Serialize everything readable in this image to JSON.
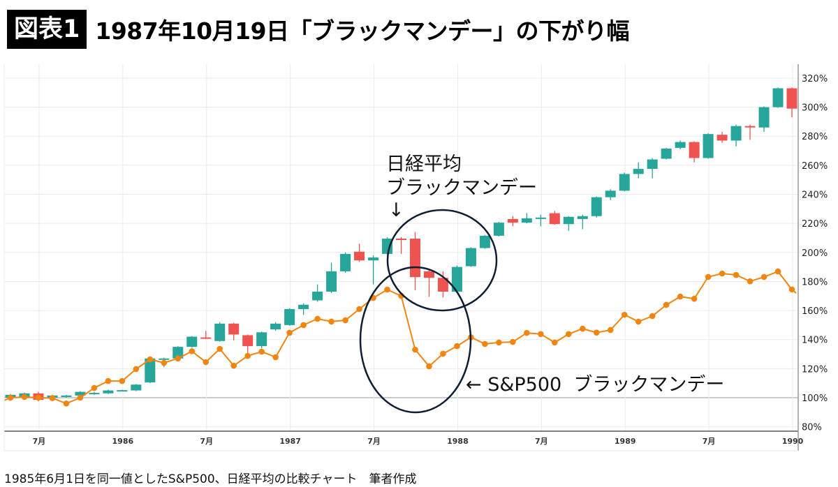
{
  "title": {
    "badge": "図表1",
    "text": "1987年10月19日「ブラックマンデー」の下がり幅"
  },
  "caption": "1985年6月1日を同一値としたS&P500、日経平均の比較チャート　筆者作成",
  "annotations": {
    "nikkei_line1": "日経平均",
    "nikkei_line2": "ブラックマンデー",
    "nikkei_arrow": "↓",
    "sp500": "← S&P500  ブラックマンデー"
  },
  "colors": {
    "up": "#26a69a",
    "down": "#ef5350",
    "sp500": "#f0850f",
    "ellipse": "#0f1e33",
    "grid": "#e6ecf0"
  },
  "chart_data": {
    "type": "candlestick+line",
    "title": "1987年10月19日「ブラックマンデー」の下がり幅",
    "ylim": [
      77,
      330
    ],
    "y_ticks": [
      80,
      100,
      120,
      140,
      160,
      180,
      200,
      220,
      240,
      260,
      280,
      300,
      320
    ],
    "y_tick_labels": [
      "80%",
      "100%",
      "120%",
      "140%",
      "160%",
      "180%",
      "200%",
      "220%",
      "240%",
      "260%",
      "280%",
      "300%",
      "320%"
    ],
    "y_axis_side": "right",
    "grid": true,
    "x_ticks": [
      {
        "month": "1985-07",
        "label": "7月"
      },
      {
        "month": "1986-01",
        "label": "1986"
      },
      {
        "month": "1986-07",
        "label": "7月"
      },
      {
        "month": "1987-01",
        "label": "1987"
      },
      {
        "month": "1987-07",
        "label": "7月"
      },
      {
        "month": "1988-01",
        "label": "1988"
      },
      {
        "month": "1988-07",
        "label": "7月"
      },
      {
        "month": "1989-01",
        "label": "1989"
      },
      {
        "month": "1989-07",
        "label": "7月"
      },
      {
        "month": "1990-01",
        "label": "1990"
      }
    ],
    "months": [
      "1985-05",
      "1985-06",
      "1985-07",
      "1985-08",
      "1985-09",
      "1985-10",
      "1985-11",
      "1985-12",
      "1986-01",
      "1986-02",
      "1986-03",
      "1986-04",
      "1986-05",
      "1986-06",
      "1986-07",
      "1986-08",
      "1986-09",
      "1986-10",
      "1986-11",
      "1986-12",
      "1987-01",
      "1987-02",
      "1987-03",
      "1987-04",
      "1987-05",
      "1987-06",
      "1987-07",
      "1987-08",
      "1987-09",
      "1987-10",
      "1987-11",
      "1987-12",
      "1988-01",
      "1988-02",
      "1988-03",
      "1988-04",
      "1988-05",
      "1988-06",
      "1988-07",
      "1988-08",
      "1988-09",
      "1988-10",
      "1988-11",
      "1988-12",
      "1989-01",
      "1989-02",
      "1989-03",
      "1989-04",
      "1989-05",
      "1989-06",
      "1989-07",
      "1989-08",
      "1989-09",
      "1989-10",
      "1989-11",
      "1989-12",
      "1990-01"
    ],
    "nikkei_ohlc": [
      [
        100,
        102,
        102.5,
        99.5
      ],
      [
        100,
        103,
        103.5,
        99.5
      ],
      [
        103,
        98.5,
        104,
        97.5
      ],
      [
        100,
        101.5,
        102,
        99.5
      ],
      [
        100.5,
        101.5,
        102,
        100
      ],
      [
        101.5,
        104,
        104.5,
        101
      ],
      [
        103,
        103.3,
        104,
        102
      ],
      [
        103,
        105,
        105.5,
        102.5
      ],
      [
        105,
        105.2,
        105.5,
        104.5
      ],
      [
        105,
        109,
        109.5,
        104.5
      ],
      [
        110.5,
        127,
        127.5,
        110
      ],
      [
        126.5,
        127,
        127.5,
        121
      ],
      [
        127,
        135,
        135.5,
        126.5
      ],
      [
        135,
        142,
        142.5,
        134.5
      ],
      [
        141.5,
        141,
        146,
        140.5
      ],
      [
        139,
        151,
        152,
        138.5
      ],
      [
        151,
        143.5,
        151.5,
        139.5
      ],
      [
        143,
        135.5,
        143.5,
        130
      ],
      [
        135.5,
        145,
        145.5,
        134
      ],
      [
        147,
        151,
        152,
        146
      ],
      [
        150,
        161,
        161.5,
        149.5
      ],
      [
        161,
        164,
        165,
        157
      ],
      [
        167,
        173,
        178,
        166
      ],
      [
        173,
        187,
        193,
        172
      ],
      [
        187,
        199,
        200,
        186
      ],
      [
        200.5,
        194.5,
        206,
        193.5
      ],
      [
        194.5,
        196.5,
        198,
        178
      ],
      [
        199,
        209.5,
        210.5,
        198.5
      ],
      [
        209.5,
        209,
        210.5,
        199
      ],
      [
        209.5,
        183,
        214,
        174
      ],
      [
        187,
        182.5,
        188,
        169.5
      ],
      [
        182.5,
        173,
        187,
        169
      ],
      [
        173,
        190,
        191,
        172.5
      ],
      [
        190.5,
        203,
        203.5,
        190
      ],
      [
        203,
        211.5,
        212,
        202.5
      ],
      [
        211.5,
        220.5,
        221,
        211
      ],
      [
        223,
        220.5,
        225,
        218
      ],
      [
        220.5,
        223.5,
        227,
        220
      ],
      [
        223.5,
        224,
        226,
        218
      ],
      [
        227,
        219.5,
        228.5,
        219
      ],
      [
        219.5,
        224.5,
        225,
        215
      ],
      [
        223,
        225,
        226,
        216
      ],
      [
        225,
        238,
        238.5,
        224
      ],
      [
        238,
        242.5,
        243.5,
        236
      ],
      [
        242.5,
        254,
        255,
        242
      ],
      [
        254,
        257.5,
        262,
        251
      ],
      [
        257.5,
        264,
        265,
        251
      ],
      [
        264.5,
        271.5,
        272,
        264
      ],
      [
        272,
        276,
        277,
        271
      ],
      [
        276,
        265,
        276.5,
        262
      ],
      [
        265,
        281.5,
        282,
        264.5
      ],
      [
        281,
        277,
        283,
        275.5
      ],
      [
        277,
        287,
        288,
        273
      ],
      [
        287,
        286.5,
        288,
        277.5
      ],
      [
        286,
        300,
        300.5,
        283
      ],
      [
        300,
        313,
        313.5,
        299.5
      ],
      [
        313,
        299,
        313.5,
        293
      ]
    ],
    "sp500": [
      100,
      100.5,
      100,
      99.7,
      96,
      100,
      106.7,
      111.5,
      111.5,
      119.7,
      126.4,
      124,
      127,
      132,
      124.5,
      133.6,
      122,
      128.8,
      131.7,
      127.9,
      144.7,
      150,
      154.3,
      152.4,
      153.3,
      161,
      168.7,
      174.4,
      170.1,
      133.1,
      121.6,
      130.3,
      135.5,
      141.6,
      137,
      138,
      138.4,
      144.6,
      143.8,
      138,
      143.8,
      147.5,
      144.8,
      146.6,
      157.1,
      152.4,
      156.2,
      163.9,
      169.6,
      168.1,
      183.1,
      185.5,
      184.5,
      180.1,
      183.1,
      186.9,
      174.5
    ]
  }
}
